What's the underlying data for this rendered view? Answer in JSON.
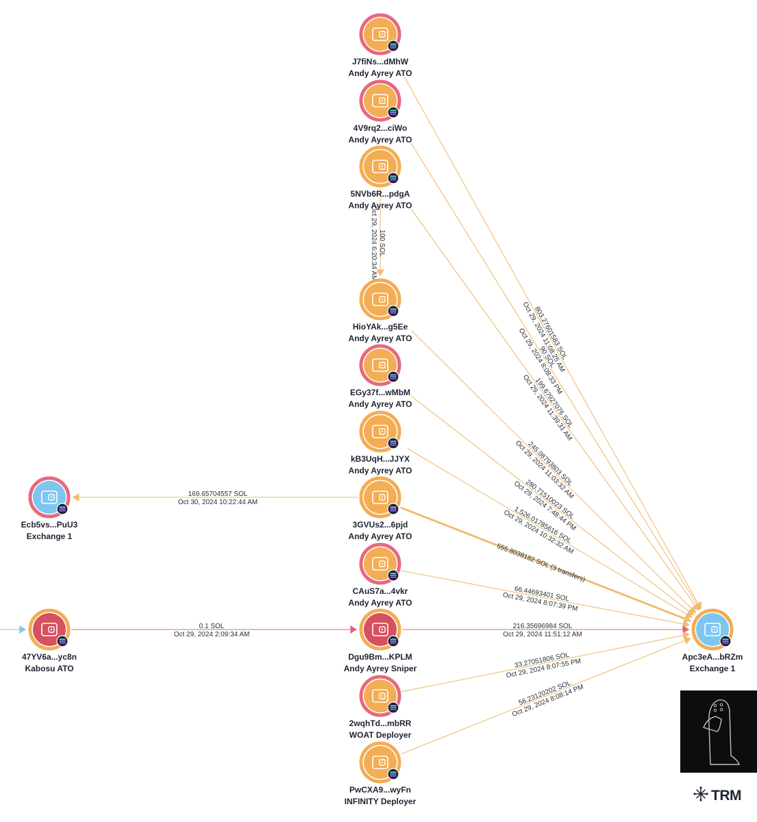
{
  "colors": {
    "orange": "#f2ad55",
    "pink": "#e8687d",
    "red": "#d7505f",
    "blue": "#7ec6f1",
    "edge_orange": "#f1bb72",
    "edge_red": "#e06476",
    "edge_blue": "#7ec6f1",
    "badge": "#1b1f3a"
  },
  "nodes": [
    {
      "id": "J7",
      "address": "J7fiNs...dMhW",
      "label": "Andy Ayrey ATO",
      "ring": "pink",
      "fill": "orange"
    },
    {
      "id": "4V9",
      "address": "4V9rq2...ciWo",
      "label": "Andy Ayrey ATO",
      "ring": "pink",
      "fill": "orange"
    },
    {
      "id": "5NV",
      "address": "5NVb6R...pdgA",
      "label": "Andy Ayrey ATO",
      "ring": "orange",
      "fill": "orange"
    },
    {
      "id": "HIO",
      "address": "HioYAk...g5Ee",
      "label": "Andy Ayrey ATO",
      "ring": "orange",
      "fill": "orange"
    },
    {
      "id": "EGY",
      "address": "EGy37f...wMbM",
      "label": "Andy Ayrey ATO",
      "ring": "pink",
      "fill": "orange"
    },
    {
      "id": "KB3",
      "address": "kB3UqH...JJYX",
      "label": "Andy Ayrey ATO",
      "ring": "orange",
      "fill": "orange"
    },
    {
      "id": "3GV",
      "address": "3GVUs2...6pjd",
      "label": "Andy Ayrey ATO",
      "ring": "orange",
      "fill": "orange"
    },
    {
      "id": "CAU",
      "address": "CAuS7a...4vkr",
      "label": "Andy Ayrey ATO",
      "ring": "pink",
      "fill": "orange"
    },
    {
      "id": "DGU",
      "address": "Dgu9Bm...KPLM",
      "label": "Andy Ayrey Sniper",
      "ring": "orange",
      "fill": "red"
    },
    {
      "id": "2WQ",
      "address": "2wqhTd...mbRR",
      "label": "WOAT Deployer",
      "ring": "pink",
      "fill": "orange"
    },
    {
      "id": "PWC",
      "address": "PwCXA9...wyFn",
      "label": "INFINITY Deployer",
      "ring": "orange",
      "fill": "orange"
    },
    {
      "id": "ECB",
      "address": "Ecb5vs...PuU3",
      "label": "Exchange 1",
      "ring": "pink",
      "fill": "blue"
    },
    {
      "id": "47Y",
      "address": "47YV6a...yc8n",
      "label": "Kabosu ATO",
      "ring": "orange",
      "fill": "red"
    },
    {
      "id": "APC",
      "address": "Apc3eA...bRZm",
      "label": "Exchange 1",
      "ring": "orange",
      "fill": "blue"
    }
  ],
  "edges": [
    {
      "from": "J7",
      "to": "APC",
      "amount": "803.27601583 SOL",
      "time": "Oct 29, 2024 11:08:25 AM",
      "color": "edge_orange"
    },
    {
      "from": "4V9",
      "to": "APC",
      "amount": "90 SOL",
      "time": "Oct 29, 2024 8:08:33 PM",
      "color": "edge_orange"
    },
    {
      "from": "5NV",
      "to": "APC",
      "amount": "199.67927076 SOL",
      "time": "Oct 29, 2024 11:39:31 AM",
      "color": "edge_orange"
    },
    {
      "from": "5NV",
      "to": "HIO",
      "amount": "100 SOL",
      "time": "Oct 29, 2024 6:20:34 AM",
      "color": "edge_orange"
    },
    {
      "from": "HIO",
      "to": "APC",
      "amount": "245.08793803 SOL",
      "time": "Oct 29, 2024 11:03:32 AM",
      "color": "edge_orange"
    },
    {
      "from": "EGY",
      "to": "APC",
      "amount": "280.71510023 SOL",
      "time": "Oct 29, 2024 7:48:44 PM",
      "color": "edge_orange"
    },
    {
      "from": "KB3",
      "to": "APC",
      "amount": "1,526.01785616 SOL",
      "time": "Oct 29, 2024 10:32:32 AM",
      "color": "edge_orange"
    },
    {
      "from": "3GV",
      "to": "APC",
      "amount": "555.8038182 SOL (3 transfers)",
      "time": "",
      "color": "edge_orange",
      "thick": true
    },
    {
      "from": "3GV",
      "to": "ECB",
      "amount": "169.65704557 SOL",
      "time": "Oct 30, 2024 10:22:44 AM",
      "color": "edge_orange"
    },
    {
      "from": "CAU",
      "to": "APC",
      "amount": "66.44693401 SOL",
      "time": "Oct 29, 2024 8:07:39 PM",
      "color": "edge_orange"
    },
    {
      "from": "DGU",
      "to": "APC",
      "amount": "216.35696984 SOL",
      "time": "Oct 29, 2024 11:51:12 AM",
      "color": "edge_red"
    },
    {
      "from": "47Y",
      "to": "DGU",
      "amount": "0.1 SOL",
      "time": "Oct 29, 2024 2:09:34 AM",
      "color": "edge_red"
    },
    {
      "from": "2WQ",
      "to": "APC",
      "amount": "33.27051806 SOL",
      "time": "Oct 29, 2024 8:07:55 PM",
      "color": "edge_orange"
    },
    {
      "from": "PWC",
      "to": "APC",
      "amount": "56.23120202 SOL",
      "time": "Oct 29, 2024 8:08:14 PM",
      "color": "edge_orange"
    },
    {
      "from": "OFF",
      "to": "47Y",
      "amount": "",
      "time": "",
      "color": "edge_blue"
    }
  ],
  "brand": {
    "name": "TRM",
    "icon": "asterisk-network-icon",
    "logo": "penguin-outline-logo"
  }
}
